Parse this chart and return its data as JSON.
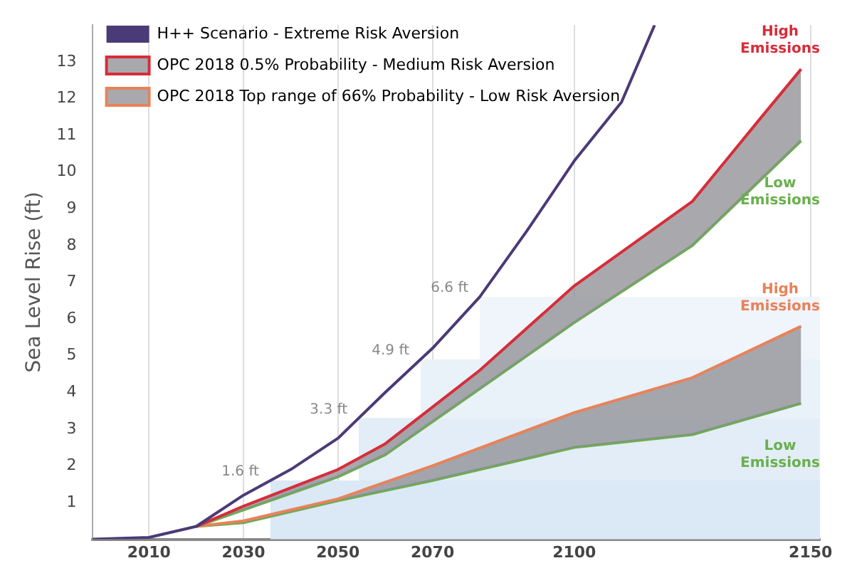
{
  "chart_data": {
    "type": "line",
    "ylabel": "Sea Level Rise (ft)",
    "xlim": [
      1998,
      2152
    ],
    "xticks": [
      2010,
      2030,
      2050,
      2070,
      2100,
      2150
    ],
    "ylim": [
      0,
      14
    ],
    "yticks": [
      1,
      2,
      3,
      4,
      5,
      6,
      7,
      8,
      9,
      10,
      11,
      12,
      13
    ],
    "grid": "x",
    "legend": "top left",
    "line_style": "solid",
    "marker": "none",
    "series": [
      {
        "name": "H++ Scenario - Extreme Risk Aversion",
        "color": "#4b3a78",
        "x": [
          1998,
          2010,
          2020,
          2030,
          2040,
          2050,
          2060,
          2070,
          2080,
          2090,
          2100,
          2110,
          2117
        ],
        "values": [
          0,
          0.05,
          0.35,
          1.2,
          1.9,
          2.75,
          4.0,
          5.2,
          6.6,
          8.4,
          10.3,
          11.9,
          14
        ]
      },
      {
        "name": "OPC 2018 0.5% Probability - Medium Risk Aversion",
        "color": "#d62d3a",
        "x": [
          2020,
          2030,
          2050,
          2060,
          2070,
          2080,
          2100,
          2125,
          2139,
          2148
        ],
        "values": [
          0.35,
          0.9,
          1.9,
          2.6,
          3.6,
          4.6,
          6.9,
          9.2,
          11.4,
          12.8
        ]
      },
      {
        "color": "#6ab04c",
        "x": [
          2020,
          2030,
          2050,
          2060,
          2070,
          2080,
          2100,
          2125,
          2148
        ],
        "values": [
          0.35,
          0.8,
          1.7,
          2.3,
          3.2,
          4.1,
          5.9,
          8.0,
          10.85
        ]
      },
      {
        "name": "OPC 2018 Top range of 66% Probability - Low Risk Aversion",
        "color": "#e8825a",
        "x": [
          2020,
          2030,
          2050,
          2070,
          2100,
          2125,
          2148
        ],
        "values": [
          0.35,
          0.5,
          1.1,
          2.0,
          3.45,
          4.4,
          5.8
        ]
      },
      {
        "color": "#6ab04c",
        "x": [
          2020,
          2030,
          2050,
          2070,
          2100,
          2125,
          2148
        ],
        "values": [
          0.35,
          0.45,
          1.05,
          1.6,
          2.5,
          2.85,
          3.7
        ]
      }
    ],
    "bands": [
      {
        "axis": "y",
        "from": 0,
        "to": 1.6,
        "label": "1.6 ft",
        "color": "#dbe8f5"
      },
      {
        "axis": "y",
        "from": 1.6,
        "to": 3.3,
        "label": "3.3 ft",
        "color": "#e3edf7"
      },
      {
        "axis": "y",
        "from": 3.3,
        "to": 4.9,
        "label": "4.9 ft",
        "color": "#e9f1f9"
      },
      {
        "axis": "y",
        "from": 4.9,
        "to": 6.6,
        "label": "6.6 ft",
        "color": "#f0f5fb"
      }
    ],
    "annotations": [
      "High Emissions",
      "Low Emissions",
      "High Emissions",
      "Low Emissions"
    ]
  }
}
